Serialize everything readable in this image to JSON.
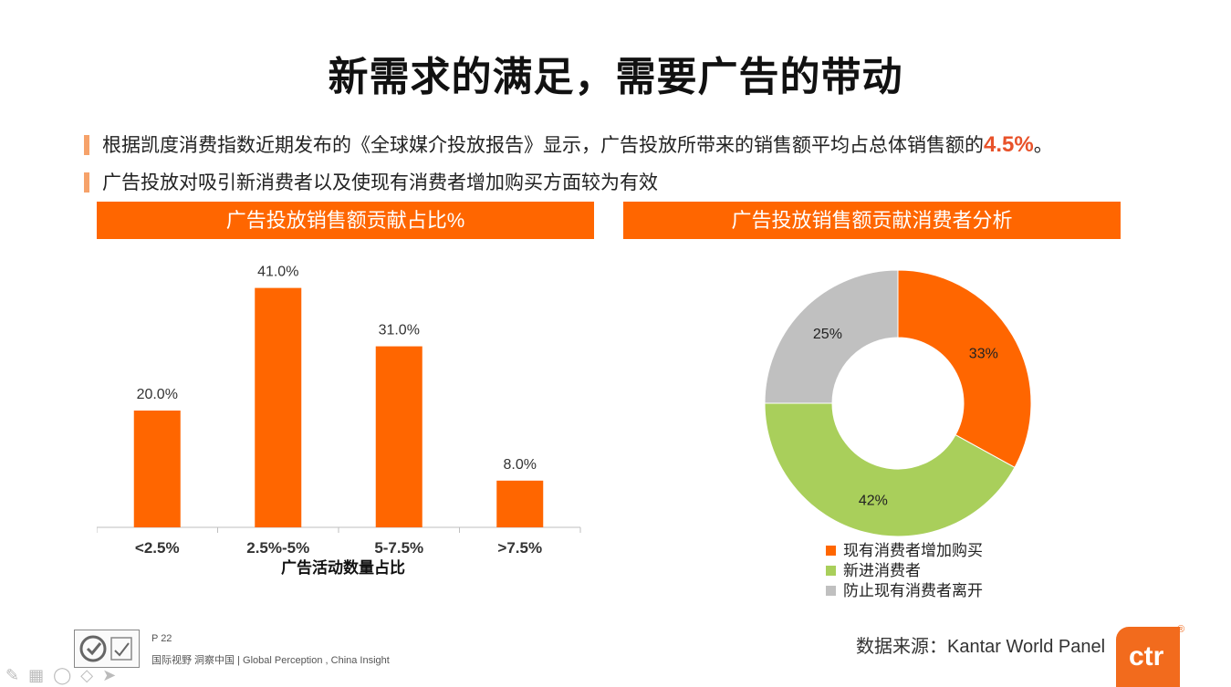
{
  "title": "新需求的满足，需要广告的带动",
  "bullets": {
    "b1_text": "根据凯度消费指数近期发布的《全球媒介投放报告》显示，广告投放所带来的销售额平均占总体销售额的",
    "b1_highlight": "4.5%",
    "b1_suffix": "。",
    "b2_text": "广告投放对吸引新消费者以及使现有消费者增加购买方面较为有效"
  },
  "panels": {
    "left_title": "广告投放销售额贡献占比%",
    "right_title": "广告投放销售额贡献消费者分析"
  },
  "chart_data": [
    {
      "type": "bar",
      "title": "广告投放销售额贡献占比%",
      "categories": [
        "<2.5%",
        "2.5%-5%",
        "5-7.5%",
        ">7.5%"
      ],
      "values": [
        20.0,
        41.0,
        31.0,
        8.0
      ],
      "data_labels": [
        "20.0%",
        "41.0%",
        "31.0%",
        "8.0%"
      ],
      "xlabel": "广告活动数量占比",
      "ylabel": "",
      "ylim": [
        0,
        45
      ],
      "color": "#ff6600"
    },
    {
      "type": "pie",
      "title": "广告投放销售额贡献消费者分析",
      "donut": true,
      "slices": [
        {
          "label": "现有消费者增加购买",
          "value": 33,
          "display": "33%",
          "color": "#ff6600"
        },
        {
          "label": "新进消费者",
          "value": 42,
          "display": "42%",
          "color": "#a9cf5b"
        },
        {
          "label": "防止现有消费者离开",
          "value": 25,
          "display": "25%",
          "color": "#c0c0c0"
        }
      ]
    }
  ],
  "footer": {
    "page": "P 22",
    "slogan": "国际视野  洞察中国 |  Global Perception , China Insight",
    "source": "数据来源：Kantar World Panel",
    "brand": "ctr",
    "brand_mark": "®"
  },
  "toolbar_icons": [
    "pen-icon",
    "grid-icon",
    "eraser-icon",
    "highlighter-icon",
    "pointer-icon"
  ]
}
